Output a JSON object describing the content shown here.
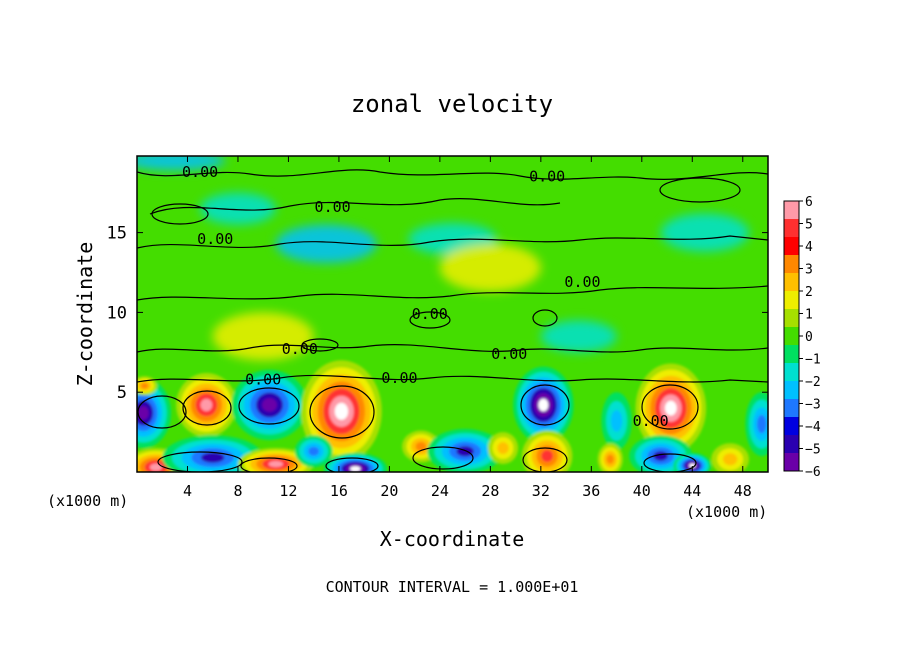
{
  "chart_data": {
    "type": "heatmap",
    "title": "zonal velocity",
    "xlabel": "X-coordinate",
    "ylabel": "Z-coordinate",
    "x_unit_left": "(x1000 m)",
    "x_unit_right": "(x1000 m)",
    "xlim": [
      0,
      50
    ],
    "ylim": [
      0,
      19.8
    ],
    "x_ticks": [
      4,
      8,
      12,
      16,
      20,
      24,
      28,
      32,
      36,
      40,
      44,
      48
    ],
    "y_ticks": [
      5,
      10,
      15
    ],
    "colorbar": {
      "min": -6,
      "max": 6,
      "ticks": [
        6,
        5,
        4,
        3,
        2,
        1,
        0,
        -1,
        -2,
        -3,
        -4,
        -5,
        -6
      ],
      "tick_labels": [
        "6",
        "5",
        "4",
        "3",
        "2",
        "1",
        "0",
        "−1",
        "−2",
        "−3",
        "−4",
        "−5",
        "−6"
      ],
      "colors": [
        "#ff9aa8",
        "#ff3030",
        "#ff0000",
        "#ff8800",
        "#ffc000",
        "#eeee00",
        "#a6e000",
        "#44dd00",
        "#00e060",
        "#00e0d0",
        "#00c0ff",
        "#1e78ff",
        "#0000e0",
        "#2a00b0",
        "#6a00a8"
      ]
    },
    "contour_label": "0.00",
    "contour_labels": [
      {
        "x": 5,
        "y": 18.8
      },
      {
        "x": 32.5,
        "y": 18.5
      },
      {
        "x": 15.5,
        "y": 16.6
      },
      {
        "x": 6.2,
        "y": 14.6
      },
      {
        "x": 35.3,
        "y": 11.9
      },
      {
        "x": 23.2,
        "y": 9.9
      },
      {
        "x": 12.9,
        "y": 7.7
      },
      {
        "x": 10,
        "y": 5.8
      },
      {
        "x": 20.8,
        "y": 5.9
      },
      {
        "x": 29.5,
        "y": 7.4
      },
      {
        "x": 40.7,
        "y": 3.2
      }
    ],
    "features": [
      {
        "x": 0.5,
        "y": 3.7,
        "v": -6,
        "rx": 2.2,
        "ry": 2.2
      },
      {
        "x": 5.5,
        "y": 4.2,
        "v": 6,
        "rx": 2.4,
        "ry": 2.0
      },
      {
        "x": 10.5,
        "y": 4.2,
        "v": -6,
        "rx": 3.0,
        "ry": 2.2
      },
      {
        "x": 16.2,
        "y": 3.8,
        "v": 6.5,
        "rx": 3.2,
        "ry": 3.2
      },
      {
        "x": 32.2,
        "y": 4.2,
        "v": -6.5,
        "rx": 2.4,
        "ry": 2.4
      },
      {
        "x": 42.3,
        "y": 4.0,
        "v": 6.5,
        "rx": 2.8,
        "ry": 2.8
      },
      {
        "x": 38.0,
        "y": 3.2,
        "v": -3,
        "rx": 1.2,
        "ry": 1.8
      },
      {
        "x": 49.5,
        "y": 3.0,
        "v": -4,
        "rx": 1.3,
        "ry": 2.0
      },
      {
        "x": 1.5,
        "y": 0.3,
        "v": 6,
        "rx": 2.5,
        "ry": 1.2
      },
      {
        "x": 6.0,
        "y": 0.9,
        "v": -5,
        "rx": 4.0,
        "ry": 1.4
      },
      {
        "x": 11.0,
        "y": 0.5,
        "v": 6,
        "rx": 3.0,
        "ry": 1.0
      },
      {
        "x": 14.0,
        "y": 1.3,
        "v": -4,
        "rx": 1.5,
        "ry": 1.0
      },
      {
        "x": 17.3,
        "y": 0.2,
        "v": -6.5,
        "rx": 2.5,
        "ry": 1.0
      },
      {
        "x": 22.5,
        "y": 1.6,
        "v": 4.5,
        "rx": 1.5,
        "ry": 1.0
      },
      {
        "x": 26.0,
        "y": 1.3,
        "v": -5,
        "rx": 3.0,
        "ry": 1.4
      },
      {
        "x": 29.0,
        "y": 1.5,
        "v": 3,
        "rx": 1.2,
        "ry": 1.0
      },
      {
        "x": 32.5,
        "y": 1.0,
        "v": 5,
        "rx": 2.0,
        "ry": 1.6
      },
      {
        "x": 37.5,
        "y": 0.8,
        "v": 4,
        "rx": 1.0,
        "ry": 1.0
      },
      {
        "x": 41.5,
        "y": 1.0,
        "v": -5,
        "rx": 2.5,
        "ry": 1.3
      },
      {
        "x": 44.0,
        "y": 0.4,
        "v": -6.5,
        "rx": 1.5,
        "ry": 0.8
      },
      {
        "x": 47.0,
        "y": 0.8,
        "v": 3,
        "rx": 1.5,
        "ry": 1.0
      },
      {
        "x": 0.6,
        "y": 5.4,
        "v": 4,
        "rx": 1.0,
        "ry": 0.6
      },
      {
        "x": 15.0,
        "y": 14.3,
        "v": -2,
        "rx": 4.0,
        "ry": 1.2
      },
      {
        "x": 25.0,
        "y": 14.6,
        "v": -1.5,
        "rx": 3.5,
        "ry": 1.0
      },
      {
        "x": 8.0,
        "y": 16.5,
        "v": -1.5,
        "rx": 3.0,
        "ry": 1.0
      },
      {
        "x": 3.0,
        "y": 19.5,
        "v": -2,
        "rx": 4.0,
        "ry": 0.6
      },
      {
        "x": 28.0,
        "y": 12.8,
        "v": 1.5,
        "rx": 4.0,
        "ry": 1.5
      },
      {
        "x": 35.0,
        "y": 8.5,
        "v": -1.5,
        "rx": 3.0,
        "ry": 1.0
      },
      {
        "x": 10.0,
        "y": 8.5,
        "v": 1.2,
        "rx": 4.0,
        "ry": 1.5
      },
      {
        "x": 45.0,
        "y": 15.0,
        "v": -1.2,
        "rx": 3.5,
        "ry": 1.2
      }
    ]
  },
  "footer": "CONTOUR INTERVAL = 1.000E+01"
}
